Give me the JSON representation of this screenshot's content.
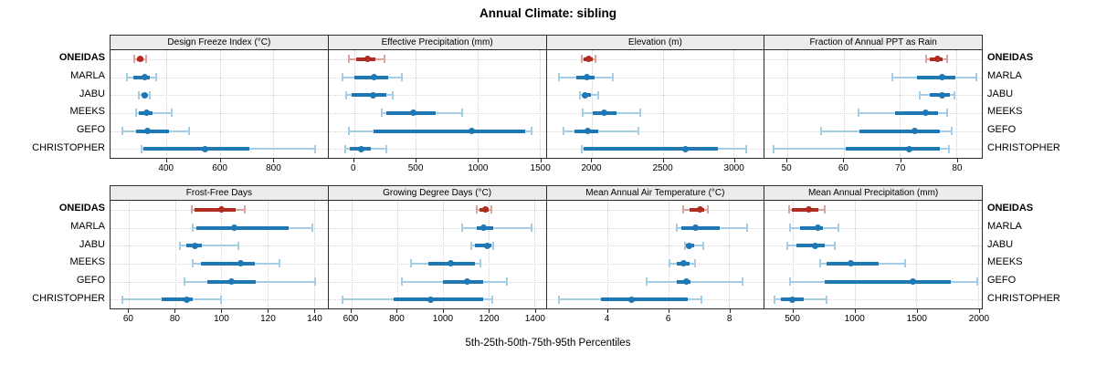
{
  "title": "Annual Climate: sibling",
  "footer": "5th-25th-50th-75th-95th Percentiles",
  "colors": {
    "highlight_dark": "#b02c21",
    "highlight_light": "#dca49e",
    "normal_dark": "#1f77b4",
    "normal_light": "#a5cde5",
    "strip_bg": "#ececec",
    "panel_border": "#2b2b2b",
    "grid": "#d2d2d2"
  },
  "chart_data": {
    "type": "dotplot-percentile-ranges",
    "percentiles": [
      5,
      25,
      50,
      75,
      95
    ],
    "groups": [
      "ONEIDAS",
      "MARLA",
      "JABU",
      "MEEKS",
      "GEFO",
      "CHRISTOPHER"
    ],
    "highlight_group": "ONEIDAS",
    "title": "Annual Climate: sibling",
    "xlabel": "5th-25th-50th-75th-95th Percentiles",
    "grid": "dotted",
    "legend_position": "none",
    "layout": {
      "rows": 2,
      "cols": 4
    },
    "panels": [
      {
        "title": "Design Freeze Index (°C)",
        "xlim": [
          190,
          1005
        ],
        "ticks": [
          400,
          600,
          800
        ],
        "series": [
          [
            280,
            290,
            300,
            315,
            325
          ],
          [
            250,
            275,
            318,
            338,
            360
          ],
          [
            295,
            305,
            317,
            326,
            336
          ],
          [
            285,
            296,
            324,
            349,
            420
          ],
          [
            235,
            286,
            328,
            410,
            485
          ],
          [
            306,
            314,
            545,
            712,
            958
          ]
        ]
      },
      {
        "title": "Effective Precipitation (mm)",
        "xlim": [
          -205,
          1550
        ],
        "ticks": [
          0,
          500,
          1000,
          1500
        ],
        "series": [
          [
            -40,
            15,
            110,
            170,
            250
          ],
          [
            -95,
            0,
            160,
            275,
            385
          ],
          [
            -65,
            -20,
            158,
            262,
            315
          ],
          [
            225,
            265,
            480,
            660,
            872
          ],
          [
            -40,
            160,
            955,
            1385,
            1437
          ],
          [
            -70,
            -35,
            60,
            135,
            260
          ]
        ]
      },
      {
        "title": "Elevation (m)",
        "xlim": [
          1680,
          3215
        ],
        "ticks": [
          2000,
          2500,
          3000
        ],
        "series": [
          [
            1928,
            1943,
            1975,
            2006,
            2027
          ],
          [
            1765,
            1890,
            1964,
            2016,
            2150
          ],
          [
            1916,
            1934,
            1954,
            1996,
            2042
          ],
          [
            1937,
            2006,
            2084,
            2174,
            2342
          ],
          [
            1800,
            1880,
            1969,
            2048,
            2328
          ],
          [
            1926,
            1944,
            2662,
            2889,
            3093
          ]
        ]
      },
      {
        "title": "Fraction of Annual PPT as Rain",
        "xlim": [
          46,
          84.5
        ],
        "ticks": [
          50,
          60,
          70,
          80
        ],
        "series": [
          [
            74.6,
            75.3,
            76.6,
            77.6,
            78.4
          ],
          [
            68.7,
            73,
            77.5,
            79.8,
            83.5
          ],
          [
            73.5,
            75.3,
            77.5,
            78.8,
            79.6
          ],
          [
            62.6,
            69.1,
            74.6,
            76.7,
            78.3
          ],
          [
            56,
            62.8,
            72.6,
            77,
            79.1
          ],
          [
            47.6,
            60.3,
            71.6,
            77,
            78.6
          ]
        ]
      },
      {
        "title": "Frost-Free Days",
        "xlim": [
          52,
          146
        ],
        "ticks": [
          60,
          80,
          100,
          120,
          140
        ],
        "series": [
          [
            87,
            88.5,
            100,
            106,
            110
          ],
          [
            87.5,
            89,
            105.5,
            129,
            139.5
          ],
          [
            82,
            85,
            88.5,
            91.5,
            107.5
          ],
          [
            87.5,
            91,
            108.5,
            114.5,
            125
          ],
          [
            84,
            94,
            104.5,
            115,
            140.5
          ],
          [
            57,
            74,
            85,
            87.5,
            100
          ]
        ]
      },
      {
        "title": "Growing Degree Days (°C)",
        "xlim": [
          500,
          1450
        ],
        "ticks": [
          600,
          800,
          1000,
          1200,
          1400
        ],
        "series": [
          [
            1148,
            1160,
            1185,
            1200,
            1212
          ],
          [
            1085,
            1148,
            1178,
            1220,
            1390
          ],
          [
            1125,
            1140,
            1194,
            1212,
            1222
          ],
          [
            860,
            935,
            1035,
            1140,
            1165
          ],
          [
            820,
            1000,
            1105,
            1175,
            1280
          ],
          [
            560,
            785,
            945,
            1175,
            1217
          ]
        ]
      },
      {
        "title": "Mean Annual Air Temperature (°C)",
        "xlim": [
          2,
          9.15
        ],
        "ticks": [
          4,
          6,
          8
        ],
        "series": [
          [
            6.5,
            6.7,
            7.05,
            7.2,
            7.3
          ],
          [
            6.3,
            6.45,
            6.9,
            7.7,
            8.6
          ],
          [
            6.55,
            6.6,
            6.7,
            6.85,
            7.15
          ],
          [
            6.05,
            6.3,
            6.5,
            6.7,
            6.9
          ],
          [
            5.3,
            6.3,
            6.6,
            6.75,
            8.45
          ],
          [
            2.4,
            3.8,
            4.8,
            6.65,
            7.1
          ]
        ]
      },
      {
        "title": "Mean Annual Precipitation (mm)",
        "xlim": [
          270,
          2030
        ],
        "ticks": [
          500,
          1000,
          1500,
          2000
        ],
        "series": [
          [
            470,
            490,
            630,
            707,
            758
          ],
          [
            477,
            555,
            700,
            745,
            870
          ],
          [
            455,
            530,
            680,
            758,
            835
          ],
          [
            720,
            770,
            970,
            1190,
            1410
          ],
          [
            472,
            760,
            1470,
            1780,
            1995
          ],
          [
            350,
            400,
            495,
            590,
            770
          ]
        ]
      }
    ]
  }
}
